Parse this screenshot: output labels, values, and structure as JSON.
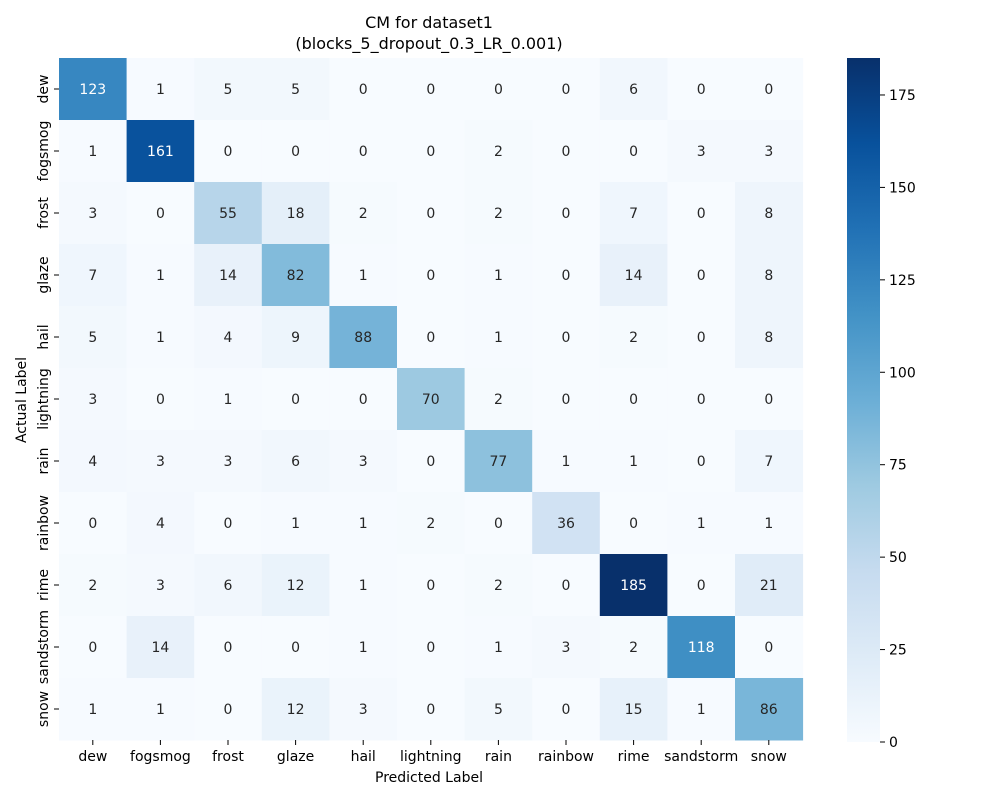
{
  "chart_data": {
    "type": "heatmap",
    "title": "CM for dataset1",
    "subtitle": "(blocks_5_dropout_0.3_LR_0.001)",
    "xlabel": "Predicted Label",
    "ylabel": "Actual Label",
    "x_categories": [
      "dew",
      "fogsmog",
      "frost",
      "glaze",
      "hail",
      "lightning",
      "rain",
      "rainbow",
      "rime",
      "sandstorm",
      "snow"
    ],
    "y_categories": [
      "dew",
      "fogsmog",
      "frost",
      "glaze",
      "hail",
      "lightning",
      "rain",
      "rainbow",
      "rime",
      "sandstorm",
      "snow"
    ],
    "values": [
      [
        123,
        1,
        5,
        5,
        0,
        0,
        0,
        0,
        6,
        0,
        0
      ],
      [
        1,
        161,
        0,
        0,
        0,
        0,
        2,
        0,
        0,
        3,
        3
      ],
      [
        3,
        0,
        55,
        18,
        2,
        0,
        2,
        0,
        7,
        0,
        8
      ],
      [
        7,
        1,
        14,
        82,
        1,
        0,
        1,
        0,
        14,
        0,
        8
      ],
      [
        5,
        1,
        4,
        9,
        88,
        0,
        1,
        0,
        2,
        0,
        8
      ],
      [
        3,
        0,
        1,
        0,
        0,
        70,
        2,
        0,
        0,
        0,
        0
      ],
      [
        4,
        3,
        3,
        6,
        3,
        0,
        77,
        1,
        1,
        0,
        7
      ],
      [
        0,
        4,
        0,
        1,
        1,
        2,
        0,
        36,
        0,
        1,
        1
      ],
      [
        2,
        3,
        6,
        12,
        1,
        0,
        2,
        0,
        185,
        0,
        21
      ],
      [
        0,
        14,
        0,
        0,
        1,
        0,
        1,
        3,
        2,
        118,
        0
      ],
      [
        1,
        1,
        0,
        12,
        3,
        0,
        5,
        0,
        15,
        1,
        86
      ]
    ],
    "colorbar": {
      "min": 0,
      "max": 185,
      "ticks": [
        0,
        25,
        50,
        75,
        100,
        125,
        150,
        175
      ],
      "colormap": "Blues",
      "low_color": "#f7fbff",
      "high_color": "#08306b"
    }
  }
}
